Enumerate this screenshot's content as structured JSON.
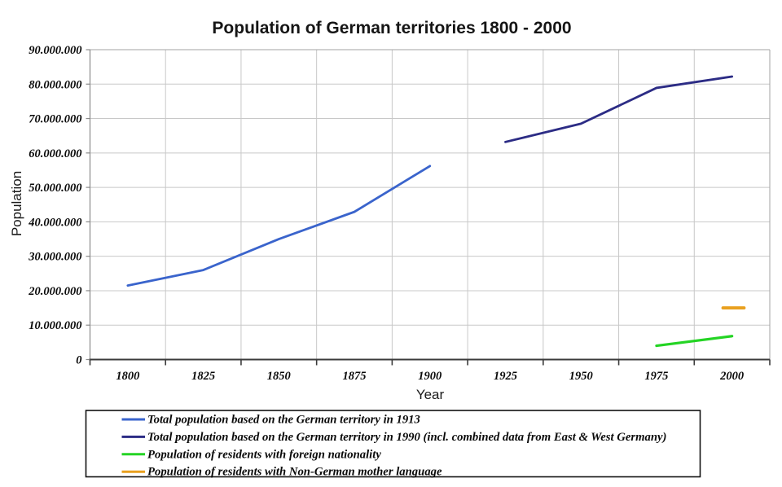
{
  "chart_data": {
    "type": "line",
    "title": "Population of German territories 1800 - 2000",
    "xlabel": "Year",
    "ylabel": "Population",
    "xlim": [
      1787.5,
      2012.5
    ],
    "ylim": [
      0,
      90000000
    ],
    "x_ticks": [
      1800,
      1825,
      1850,
      1875,
      1900,
      1925,
      1950,
      1975,
      2000
    ],
    "x_tick_labels": [
      "1800",
      "1825",
      "1850",
      "1875",
      "1900",
      "1925",
      "1950",
      "1975",
      "2000"
    ],
    "x_gridline_step_years": 25,
    "y_ticks": [
      0,
      10000000,
      20000000,
      30000000,
      40000000,
      50000000,
      60000000,
      70000000,
      80000000,
      90000000
    ],
    "y_tick_labels": [
      "0",
      "10.000.000",
      "20.000.000",
      "30.000.000",
      "40.000.000",
      "50.000.000",
      "60.000.000",
      "70.000.000",
      "80.000.000",
      "90.000.000"
    ],
    "grid": true,
    "legend_position": "bottom",
    "series": [
      {
        "name": "Total population based on the German territory in 1913",
        "color": "#3a64cc",
        "x": [
          1800,
          1825,
          1850,
          1875,
          1900
        ],
        "values": [
          21500000,
          26000000,
          35000000,
          42900000,
          56200000
        ]
      },
      {
        "name": "Total population based on the German territory in 1990 (incl. combined data from East & West Germany)",
        "color": "#2c2c85",
        "x": [
          1925,
          1950,
          1975,
          2000
        ],
        "values": [
          63200000,
          68500000,
          78900000,
          82200000
        ]
      },
      {
        "name": "Population of residents with foreign nationality",
        "color": "#24d424",
        "x": [
          1975,
          2000
        ],
        "values": [
          4000000,
          6800000
        ]
      },
      {
        "name": "Population of residents with Non-German mother language",
        "color": "#e9a01f",
        "x": [
          1997,
          2004
        ],
        "values": [
          15000000,
          15000000
        ]
      }
    ]
  },
  "colors": {
    "background": "#ffffff",
    "gridline": "#c8c8c8",
    "plot_border": "#a3a3a3",
    "x_axis": "#3a3a3a",
    "y_axis": "#8a8a8a",
    "legend_border": "#111111",
    "text": "#0a0a0a"
  }
}
